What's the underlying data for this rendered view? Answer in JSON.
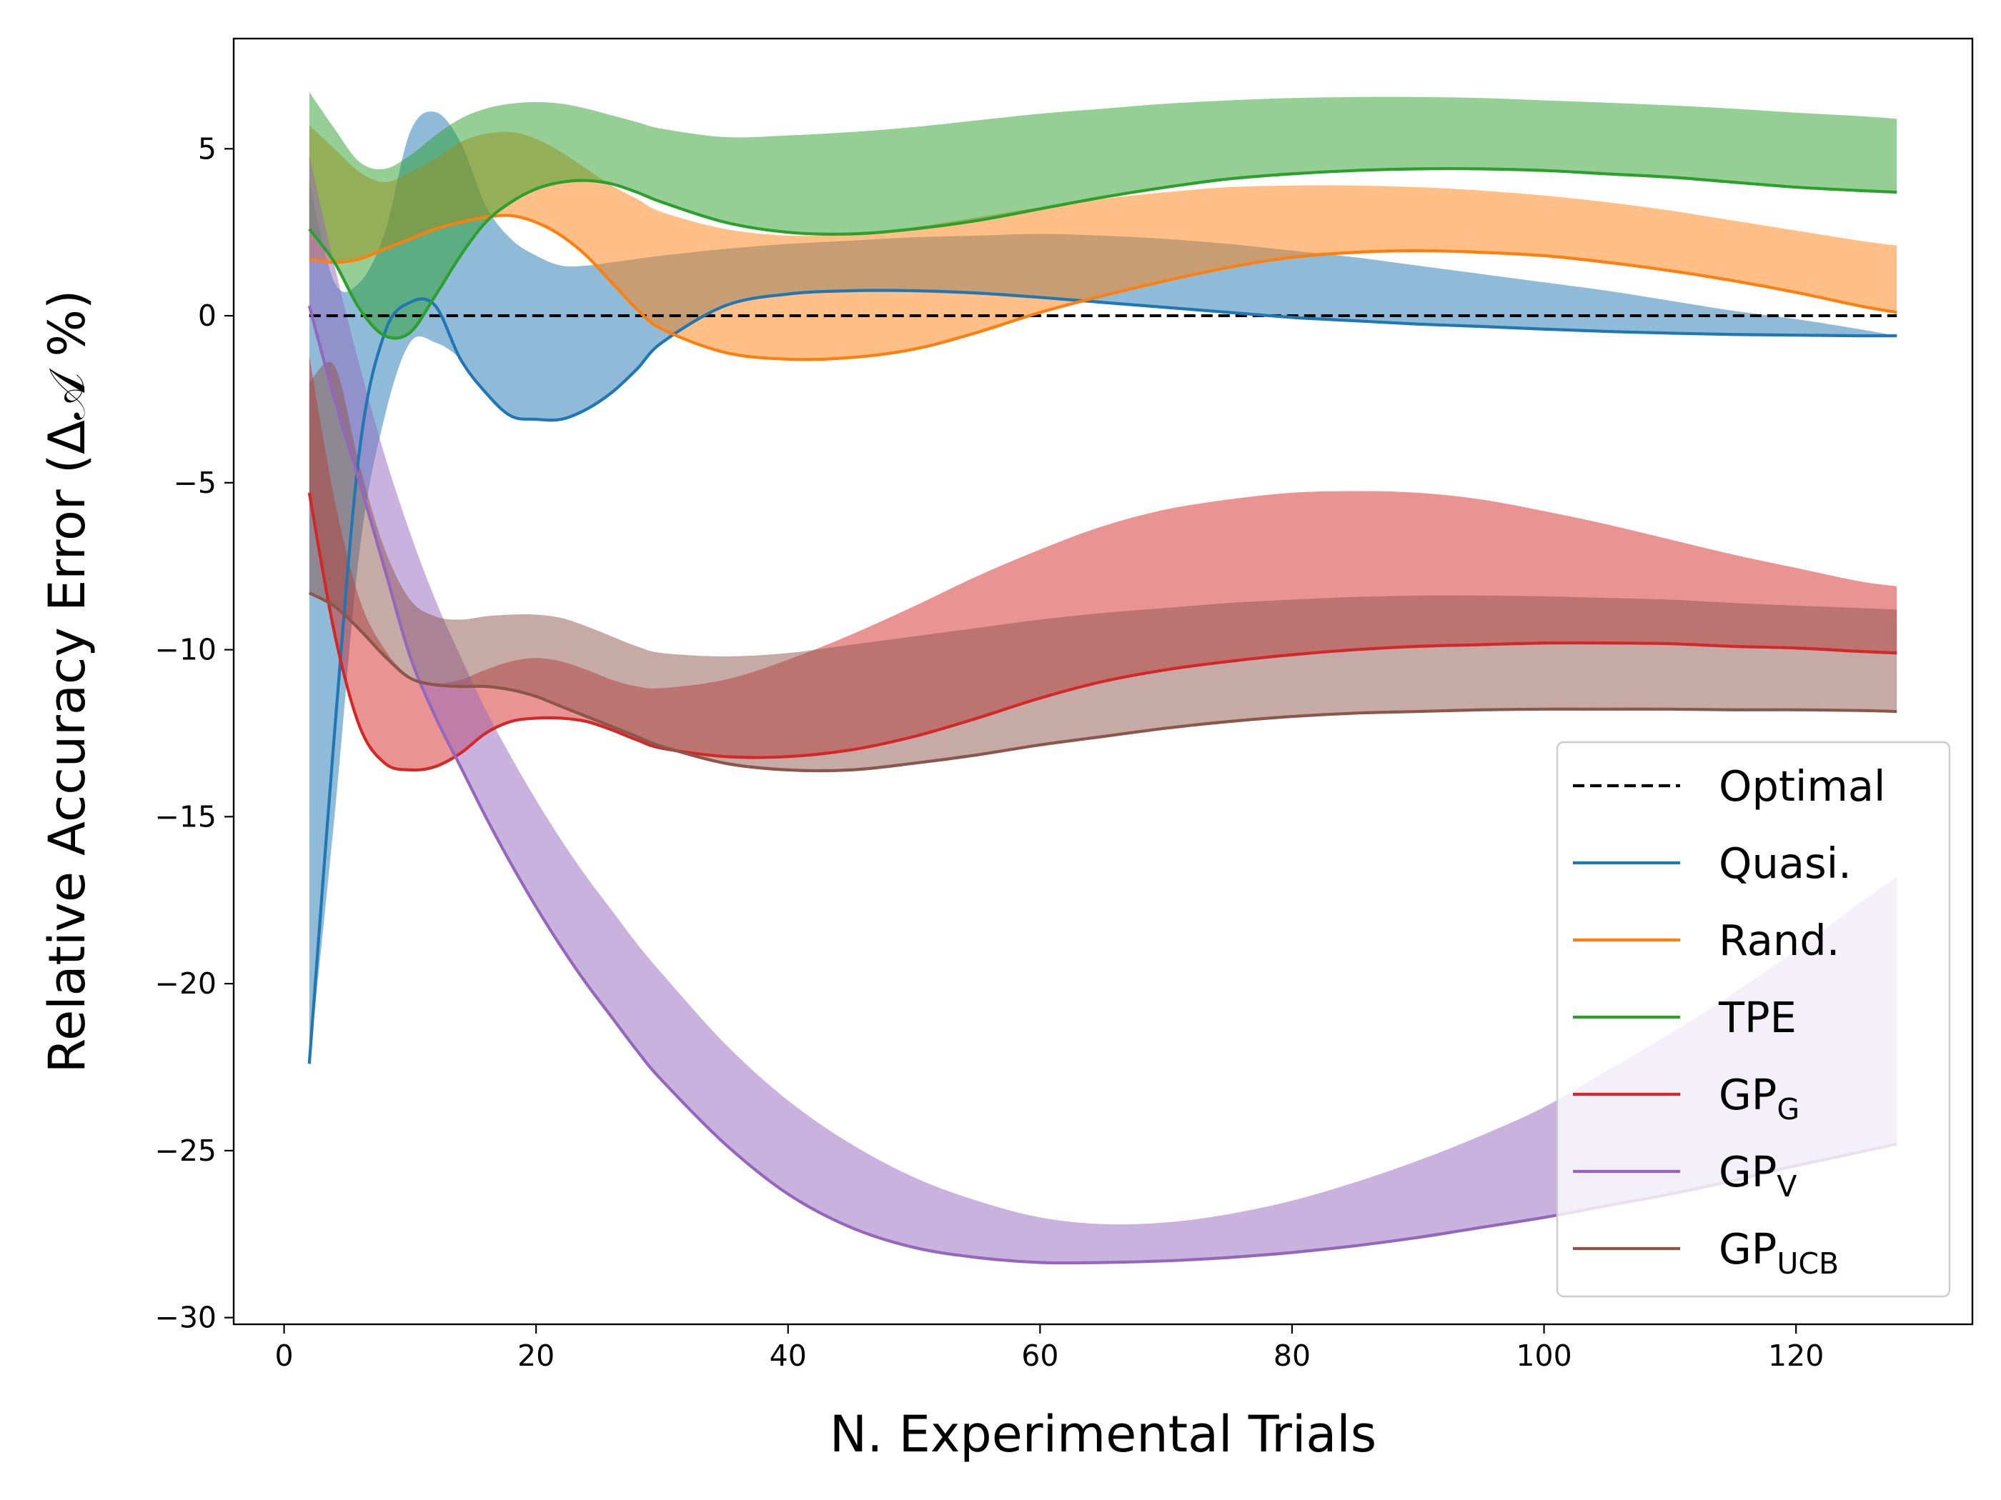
{
  "chart_data": {
    "type": "line",
    "title": "",
    "xlabel": "N. Experimental Trials",
    "ylabel": "Relative Accuracy Error (Δ𝒜 %)",
    "xlim": [
      -4,
      134
    ],
    "ylim": [
      -30.2,
      8.3
    ],
    "xticks": [
      0,
      20,
      40,
      60,
      80,
      100,
      120
    ],
    "yticks": [
      -30,
      -25,
      -20,
      -15,
      -10,
      -5,
      0,
      5
    ],
    "grid": false,
    "legend_position": "lower-right",
    "x": [
      2,
      4,
      6,
      8,
      10,
      12,
      14,
      16,
      18,
      20,
      22,
      24,
      26,
      28,
      30,
      35,
      40,
      45,
      50,
      55,
      60,
      65,
      70,
      75,
      80,
      85,
      90,
      95,
      100,
      105,
      110,
      115,
      120,
      125,
      128
    ],
    "series": [
      {
        "name": "Optimal",
        "color": "#000000",
        "dashed": true,
        "values": [
          0,
          0,
          0,
          0,
          0,
          0,
          0,
          0,
          0,
          0,
          0,
          0,
          0,
          0,
          0,
          0,
          0,
          0,
          0,
          0,
          0,
          0,
          0,
          0,
          0,
          0,
          0,
          0,
          0,
          0,
          0,
          0,
          0,
          0,
          0
        ]
      },
      {
        "name": "Quasi.",
        "color": "#1f77b4",
        "values": [
          -22.4,
          -12.5,
          -4.0,
          -0.5,
          0.4,
          0.3,
          -1.3,
          -2.3,
          -3.0,
          -3.1,
          -3.1,
          -2.8,
          -2.3,
          -1.6,
          -0.8,
          0.3,
          0.65,
          0.75,
          0.75,
          0.68,
          0.55,
          0.4,
          0.25,
          0.1,
          -0.05,
          -0.15,
          -0.25,
          -0.32,
          -0.4,
          -0.47,
          -0.52,
          -0.56,
          -0.58,
          -0.6,
          -0.6
        ]
      },
      {
        "name": "Rand.",
        "color": "#ff7f0e",
        "values": [
          1.7,
          1.6,
          1.7,
          2.0,
          2.3,
          2.6,
          2.8,
          2.95,
          3.0,
          2.8,
          2.4,
          1.8,
          1.0,
          0.2,
          -0.4,
          -1.1,
          -1.3,
          -1.25,
          -1.0,
          -0.5,
          0.1,
          0.6,
          1.05,
          1.45,
          1.75,
          1.9,
          1.95,
          1.9,
          1.8,
          1.6,
          1.35,
          1.05,
          0.7,
          0.3,
          0.1
        ]
      },
      {
        "name": "TPE",
        "color": "#2ca02c",
        "values": [
          2.6,
          1.6,
          0.2,
          -0.6,
          -0.5,
          0.6,
          1.8,
          2.8,
          3.4,
          3.8,
          4.0,
          4.05,
          3.95,
          3.7,
          3.4,
          2.8,
          2.5,
          2.45,
          2.6,
          2.85,
          3.2,
          3.55,
          3.85,
          4.1,
          4.25,
          4.35,
          4.4,
          4.4,
          4.35,
          4.25,
          4.15,
          4.0,
          3.85,
          3.75,
          3.7
        ]
      },
      {
        "name": "GP",
        "sub": "G",
        "color": "#d62728",
        "values": [
          -5.3,
          -9.5,
          -12.3,
          -13.4,
          -13.6,
          -13.5,
          -13.1,
          -12.5,
          -12.15,
          -12.05,
          -12.05,
          -12.15,
          -12.4,
          -12.7,
          -12.95,
          -13.2,
          -13.2,
          -13.0,
          -12.6,
          -12.05,
          -11.45,
          -10.95,
          -10.6,
          -10.35,
          -10.15,
          -10.0,
          -9.9,
          -9.85,
          -9.8,
          -9.8,
          -9.82,
          -9.9,
          -9.95,
          -10.05,
          -10.1
        ]
      },
      {
        "name": "GP",
        "sub": "V",
        "color": "#9467bd",
        "values": [
          0.3,
          -2.5,
          -5.0,
          -7.6,
          -10.2,
          -12.0,
          -13.5,
          -15.0,
          -16.4,
          -17.7,
          -18.9,
          -20.0,
          -21.0,
          -22.0,
          -22.9,
          -24.8,
          -26.3,
          -27.3,
          -27.9,
          -28.2,
          -28.35,
          -28.35,
          -28.3,
          -28.2,
          -28.05,
          -27.85,
          -27.6,
          -27.3,
          -27.0,
          -26.65,
          -26.3,
          -25.9,
          -25.45,
          -25.05,
          -24.8
        ]
      },
      {
        "name": "GP",
        "sub": "UCB",
        "color": "#8c564b",
        "values": [
          -8.3,
          -8.7,
          -9.4,
          -10.2,
          -10.85,
          -11.05,
          -11.1,
          -11.1,
          -11.2,
          -11.4,
          -11.7,
          -12.0,
          -12.3,
          -12.6,
          -12.9,
          -13.4,
          -13.6,
          -13.6,
          -13.4,
          -13.15,
          -12.85,
          -12.6,
          -12.35,
          -12.15,
          -12.0,
          -11.9,
          -11.85,
          -11.8,
          -11.78,
          -11.78,
          -11.78,
          -11.8,
          -11.8,
          -11.82,
          -11.85
        ]
      }
    ],
    "bands": [
      {
        "series": "Quasi.",
        "color": "#1f77b4",
        "opacity": 0.5,
        "lower": [
          -22.4,
          -15.0,
          -7.0,
          -3.0,
          -0.8,
          -0.8,
          -1.3,
          -2.3,
          -3.0,
          -3.1,
          -3.1,
          -2.8,
          -2.3,
          -1.6,
          -0.8,
          0.3,
          0.65,
          0.75,
          0.75,
          0.68,
          0.55,
          0.4,
          0.25,
          0.1,
          -0.05,
          -0.15,
          -0.25,
          -0.32,
          -0.4,
          -0.47,
          -0.52,
          -0.56,
          -0.58,
          -0.6,
          -0.6
        ],
        "upper": [
          4.0,
          1.0,
          1.0,
          2.5,
          5.5,
          6.1,
          5.2,
          3.3,
          2.3,
          1.8,
          1.5,
          1.5,
          1.6,
          1.7,
          1.8,
          2.0,
          2.15,
          2.25,
          2.35,
          2.4,
          2.45,
          2.4,
          2.3,
          2.15,
          1.95,
          1.75,
          1.5,
          1.25,
          1.0,
          0.75,
          0.45,
          0.15,
          -0.1,
          -0.4,
          -0.6
        ]
      },
      {
        "series": "Rand.",
        "color": "#ff7f0e",
        "opacity": 0.5,
        "lower": [
          1.7,
          1.6,
          1.7,
          2.0,
          2.3,
          2.6,
          2.8,
          2.95,
          3.0,
          2.8,
          2.4,
          1.8,
          1.0,
          0.2,
          -0.4,
          -1.1,
          -1.3,
          -1.25,
          -1.0,
          -0.5,
          0.1,
          0.6,
          1.05,
          1.45,
          1.75,
          1.9,
          1.95,
          1.9,
          1.8,
          1.6,
          1.35,
          1.05,
          0.7,
          0.3,
          0.1
        ],
        "upper": [
          5.7,
          5.0,
          4.3,
          4.0,
          4.3,
          4.7,
          5.2,
          5.45,
          5.5,
          5.3,
          4.9,
          4.4,
          3.9,
          3.5,
          3.1,
          2.6,
          2.4,
          2.45,
          2.65,
          2.95,
          3.25,
          3.5,
          3.7,
          3.85,
          3.9,
          3.9,
          3.85,
          3.75,
          3.6,
          3.4,
          3.15,
          2.85,
          2.55,
          2.25,
          2.1
        ]
      },
      {
        "series": "TPE",
        "color": "#2ca02c",
        "opacity": 0.5,
        "lower": [
          2.6,
          1.6,
          0.2,
          -0.6,
          -0.5,
          0.6,
          1.8,
          2.8,
          3.4,
          3.8,
          4.0,
          4.05,
          3.95,
          3.7,
          3.4,
          2.8,
          2.5,
          2.45,
          2.6,
          2.85,
          3.2,
          3.55,
          3.85,
          4.1,
          4.25,
          4.35,
          4.4,
          4.4,
          4.35,
          4.25,
          4.15,
          4.0,
          3.85,
          3.75,
          3.7
        ],
        "upper": [
          6.7,
          5.6,
          4.6,
          4.4,
          4.8,
          5.4,
          5.9,
          6.2,
          6.35,
          6.4,
          6.35,
          6.2,
          6.0,
          5.8,
          5.6,
          5.35,
          5.4,
          5.5,
          5.65,
          5.85,
          6.05,
          6.2,
          6.35,
          6.45,
          6.52,
          6.55,
          6.55,
          6.52,
          6.45,
          6.38,
          6.3,
          6.2,
          6.08,
          5.98,
          5.9
        ]
      },
      {
        "series": "GP_G",
        "color": "#d62728",
        "opacity": 0.5,
        "lower": [
          -5.3,
          -9.5,
          -12.3,
          -13.4,
          -13.6,
          -13.5,
          -13.1,
          -12.5,
          -12.15,
          -12.05,
          -12.05,
          -12.15,
          -12.4,
          -12.7,
          -12.95,
          -13.2,
          -13.2,
          -13.0,
          -12.6,
          -12.05,
          -11.45,
          -10.95,
          -10.6,
          -10.35,
          -10.15,
          -10.0,
          -9.9,
          -9.85,
          -9.8,
          -9.8,
          -9.82,
          -9.9,
          -9.95,
          -10.05,
          -10.1
        ],
        "upper": [
          -1.2,
          -5.5,
          -8.5,
          -10.0,
          -10.8,
          -11.0,
          -10.9,
          -10.6,
          -10.35,
          -10.25,
          -10.35,
          -10.6,
          -10.9,
          -11.1,
          -11.15,
          -10.9,
          -10.3,
          -9.55,
          -8.7,
          -7.8,
          -7.0,
          -6.3,
          -5.8,
          -5.5,
          -5.3,
          -5.25,
          -5.3,
          -5.5,
          -5.85,
          -6.25,
          -6.7,
          -7.15,
          -7.55,
          -7.95,
          -8.1
        ]
      },
      {
        "series": "GP_V",
        "color": "#9467bd",
        "opacity": 0.5,
        "lower": [
          0.3,
          -2.5,
          -5.0,
          -7.6,
          -10.2,
          -12.0,
          -13.5,
          -15.0,
          -16.4,
          -17.7,
          -18.9,
          -20.0,
          -21.0,
          -22.0,
          -22.9,
          -24.8,
          -26.3,
          -27.3,
          -27.9,
          -28.2,
          -28.35,
          -28.35,
          -28.3,
          -28.2,
          -28.05,
          -27.85,
          -27.6,
          -27.3,
          -27.0,
          -26.65,
          -26.3,
          -25.9,
          -25.45,
          -25.05,
          -24.8
        ],
        "upper": [
          4.8,
          1.5,
          -1.5,
          -4.2,
          -6.5,
          -8.5,
          -10.2,
          -11.8,
          -13.2,
          -14.5,
          -15.7,
          -16.8,
          -17.8,
          -18.8,
          -19.7,
          -21.8,
          -23.5,
          -24.8,
          -25.8,
          -26.5,
          -27.0,
          -27.2,
          -27.15,
          -26.9,
          -26.5,
          -25.95,
          -25.3,
          -24.55,
          -23.7,
          -22.6,
          -21.5,
          -20.3,
          -19.0,
          -17.6,
          -16.8
        ]
      },
      {
        "series": "GP_UCB",
        "color": "#8c564b",
        "opacity": 0.5,
        "lower": [
          -8.3,
          -8.7,
          -9.4,
          -10.2,
          -10.85,
          -11.05,
          -11.1,
          -11.1,
          -11.2,
          -11.4,
          -11.7,
          -12.0,
          -12.3,
          -12.6,
          -12.9,
          -13.4,
          -13.6,
          -13.6,
          -13.4,
          -13.15,
          -12.85,
          -12.6,
          -12.35,
          -12.15,
          -12.0,
          -11.9,
          -11.85,
          -11.8,
          -11.78,
          -11.78,
          -11.78,
          -11.8,
          -11.8,
          -11.82,
          -11.85
        ],
        "upper": [
          -2.0,
          -1.5,
          -4.5,
          -7.0,
          -8.5,
          -9.0,
          -9.1,
          -9.0,
          -8.95,
          -8.95,
          -9.05,
          -9.3,
          -9.6,
          -9.9,
          -10.1,
          -10.2,
          -10.1,
          -9.85,
          -9.6,
          -9.35,
          -9.1,
          -8.9,
          -8.75,
          -8.6,
          -8.5,
          -8.42,
          -8.38,
          -8.38,
          -8.4,
          -8.45,
          -8.5,
          -8.6,
          -8.68,
          -8.75,
          -8.8
        ]
      }
    ]
  }
}
